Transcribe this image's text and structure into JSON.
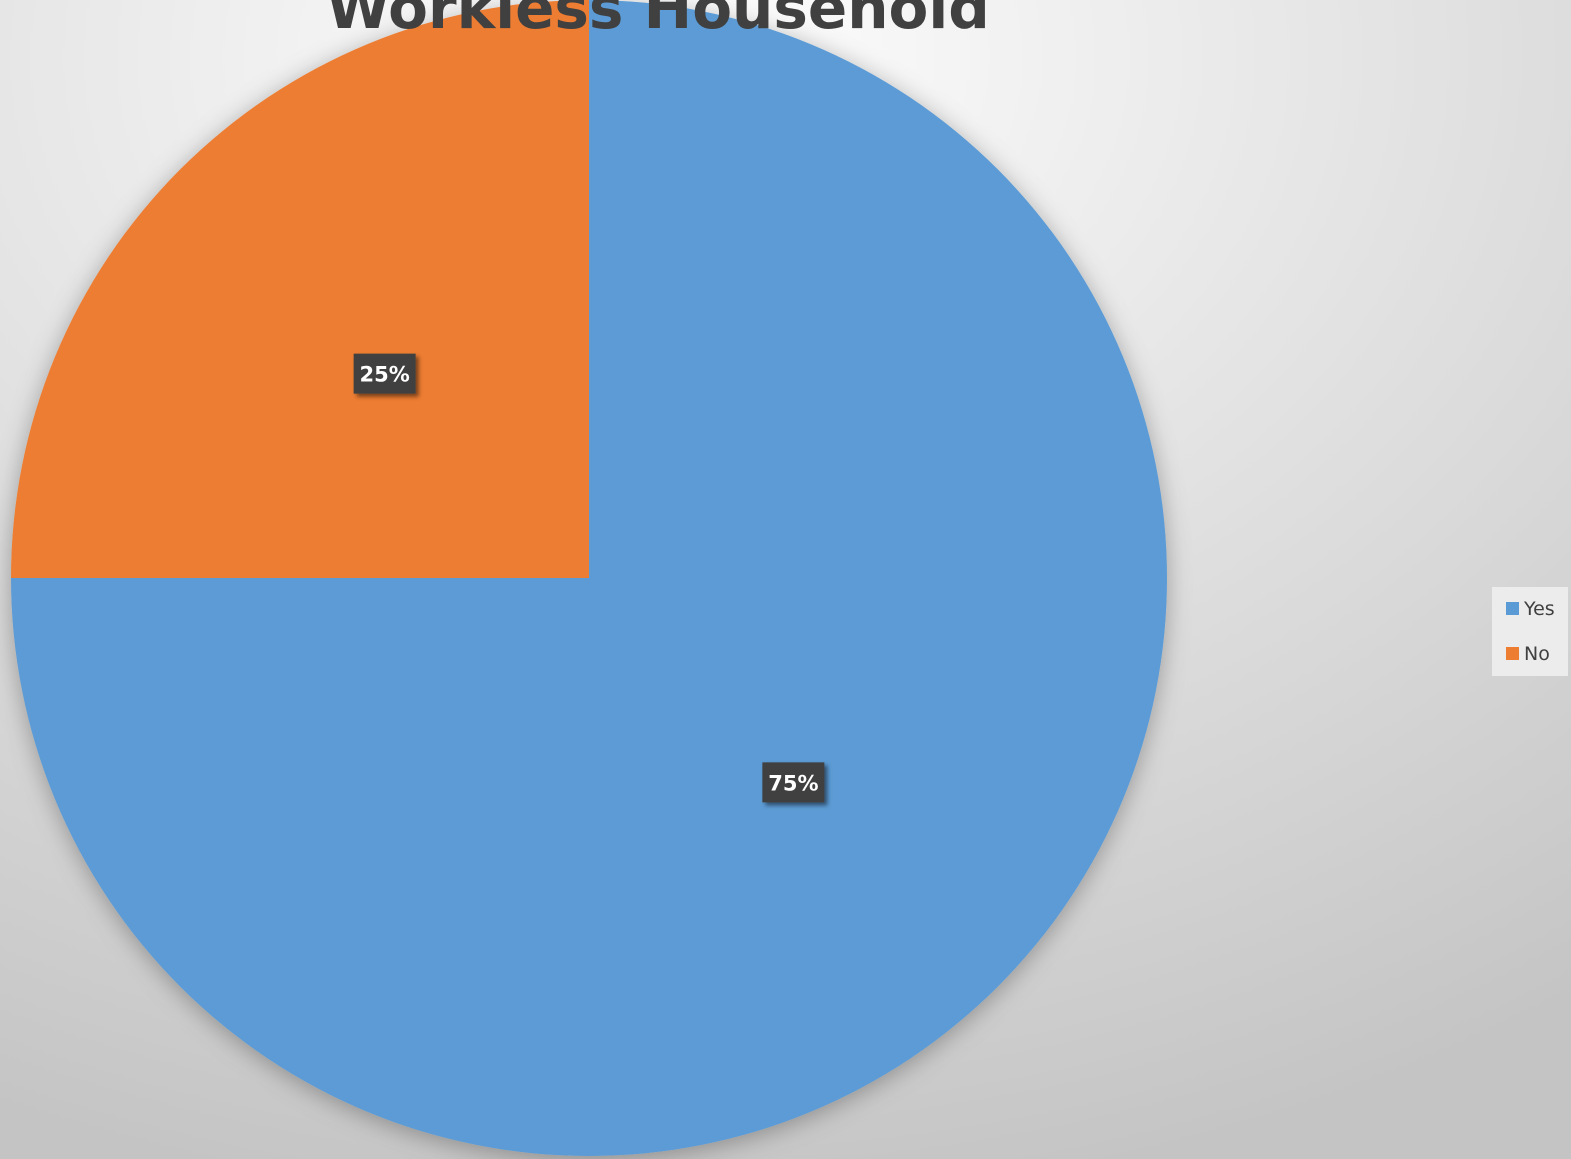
{
  "chart_data": {
    "type": "pie",
    "title": "Workless Household",
    "categories": [
      "Yes",
      "No"
    ],
    "values": [
      75,
      25
    ],
    "value_labels": [
      "75%",
      "25%"
    ],
    "colors": [
      "#5b9bd5",
      "#ed7d31"
    ],
    "legend": "right"
  }
}
